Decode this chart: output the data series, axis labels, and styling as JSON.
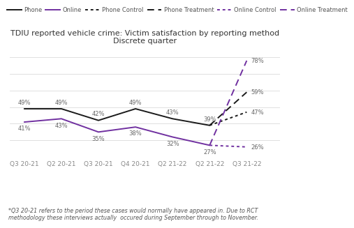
{
  "title": "TDIU reported vehicle crime: Victim satisfaction by reporting method",
  "subtitle": "Discrete quarter",
  "x_labels": [
    "Q3 20-21",
    "Q2 20-21",
    "Q3 20-21",
    "Q4 20-21",
    "Q2 21-22",
    "Q2 21-22",
    "Q3 21-22"
  ],
  "phone": [
    49,
    49,
    42,
    49,
    43,
    39,
    null
  ],
  "online": [
    41,
    43,
    35,
    38,
    32,
    27,
    null
  ],
  "phone_control": [
    null,
    null,
    null,
    null,
    null,
    39,
    47
  ],
  "phone_treatment": [
    null,
    null,
    null,
    null,
    null,
    39,
    59
  ],
  "online_control": [
    null,
    null,
    null,
    null,
    null,
    27,
    26
  ],
  "online_treatment": [
    null,
    null,
    null,
    null,
    null,
    27,
    78
  ],
  "phone_color": "#1a1a1a",
  "online_color": "#7030a0",
  "footnote": "*Q3 20-21 refers to the period these cases would normally have appeared in. Due to RCT\nmethodology these interviews actually  occured during September through to November.",
  "ylim": [
    20,
    85
  ],
  "grid_lines": [
    30,
    40,
    50,
    60,
    70,
    80
  ]
}
